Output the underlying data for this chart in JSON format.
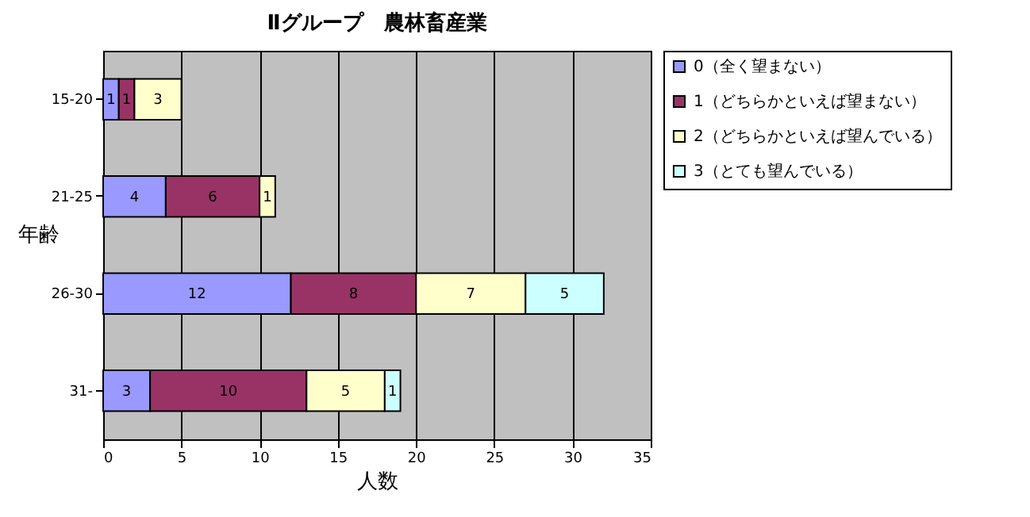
{
  "chart_data": {
    "type": "bar",
    "title": "Ⅱグループ　農林畜産業",
    "orientation": "horizontal",
    "stacked": true,
    "xlabel": "人数",
    "ylabel": "年齢",
    "categories": [
      "15-20",
      "21-25",
      "26-30",
      "31-"
    ],
    "series": [
      {
        "name": "0（全く望まない）",
        "color": "#9999ff",
        "values": [
          1,
          4,
          12,
          3
        ]
      },
      {
        "name": "1（どちらかといえば望まない）",
        "color": "#993366",
        "values": [
          1,
          6,
          8,
          10
        ]
      },
      {
        "name": "2（どちらかといえば望んでいる）",
        "color": "#ffffcc",
        "values": [
          3,
          1,
          7,
          5
        ]
      },
      {
        "name": "3（とても望んでいる）",
        "color": "#ccffff",
        "values": [
          null,
          null,
          5,
          1
        ]
      }
    ],
    "xlim": [
      0,
      35
    ],
    "xticks": [
      0,
      5,
      10,
      15,
      20,
      25,
      30,
      35
    ],
    "grid": "x",
    "legend": "right",
    "data_labels": true
  }
}
